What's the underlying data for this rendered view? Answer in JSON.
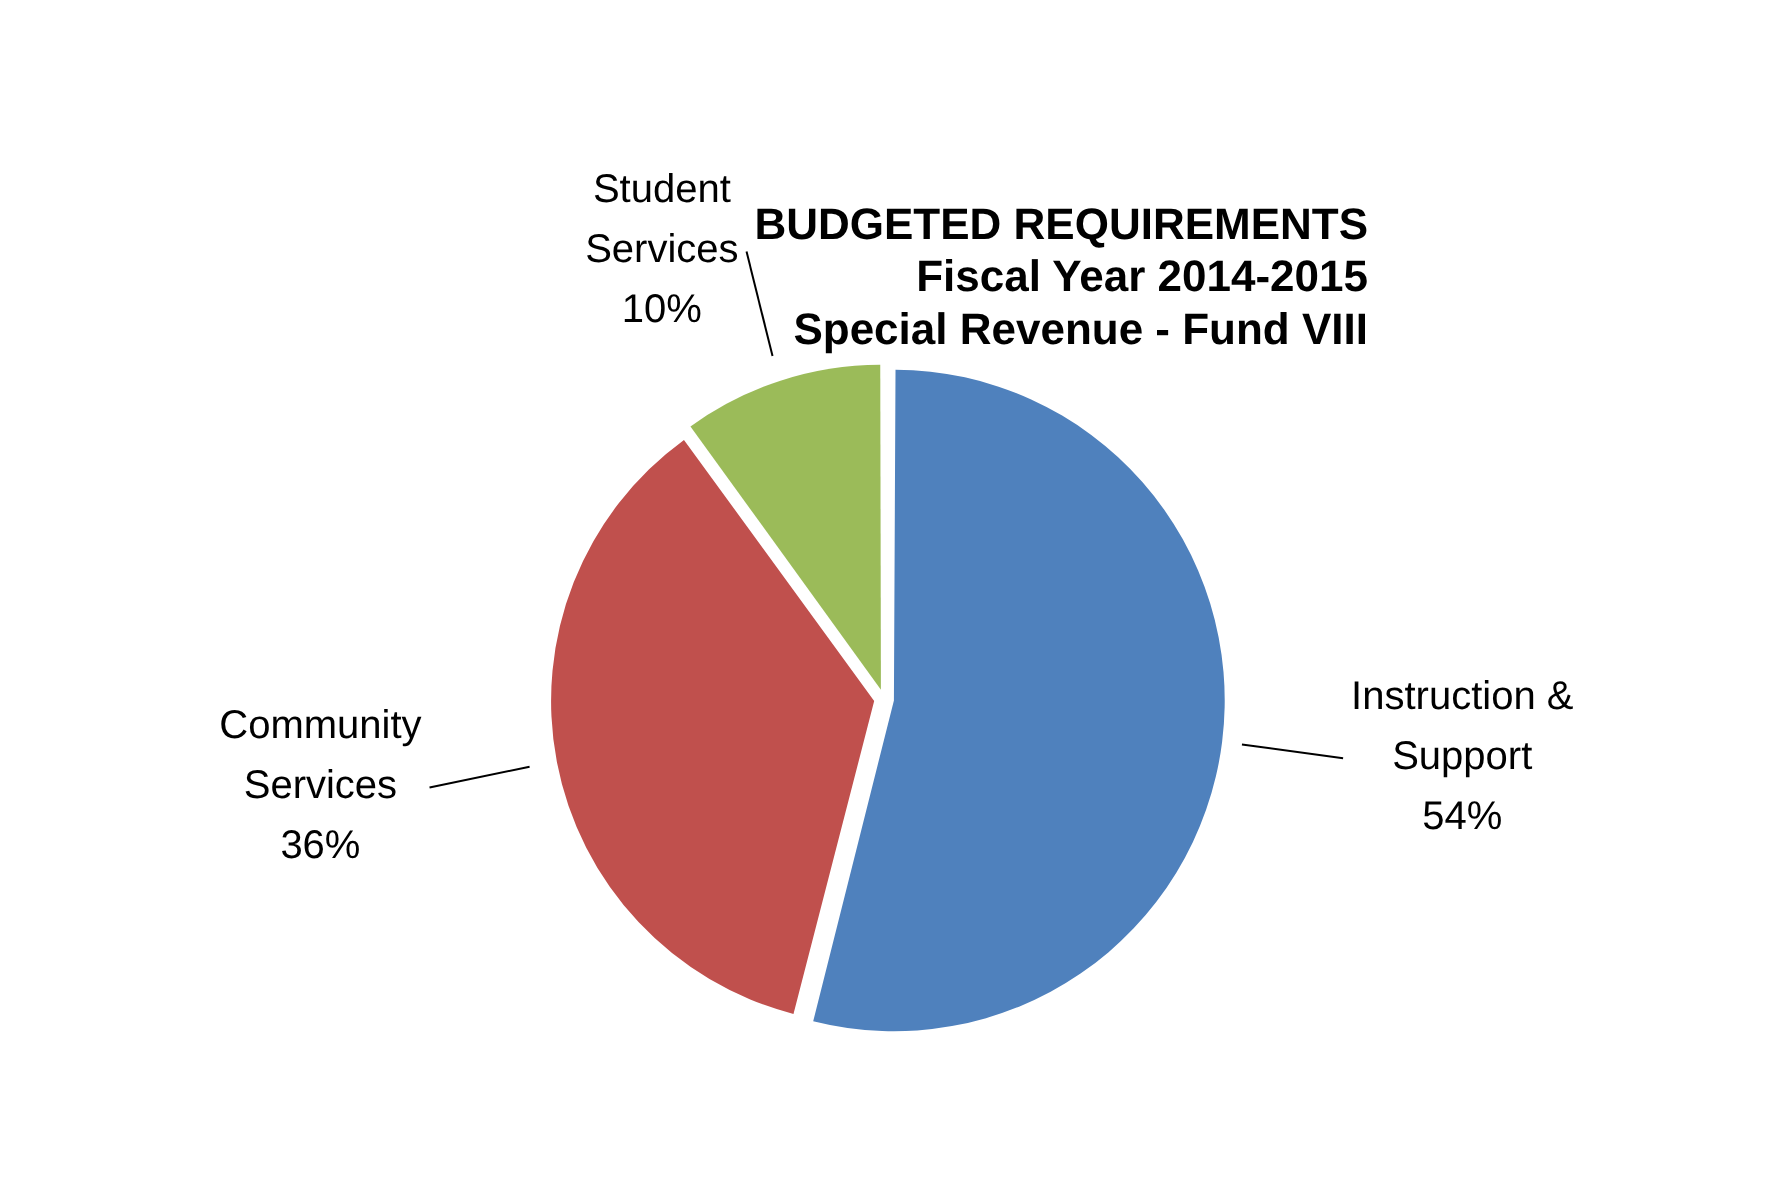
{
  "chart_data": {
    "type": "pie",
    "title": "BUDGETED REQUIREMENTS\nFiscal Year 2014-2015\nSpecial Revenue - Fund VIII",
    "categories": [
      "Instruction & Support",
      "Community Services",
      "Student Services"
    ],
    "values": [
      54,
      36,
      10
    ],
    "colors": [
      "#4f81bd",
      "#c0504d",
      "#9bbb59"
    ],
    "value_labels": [
      "54%",
      "36%",
      "10%"
    ],
    "legend": false
  }
}
